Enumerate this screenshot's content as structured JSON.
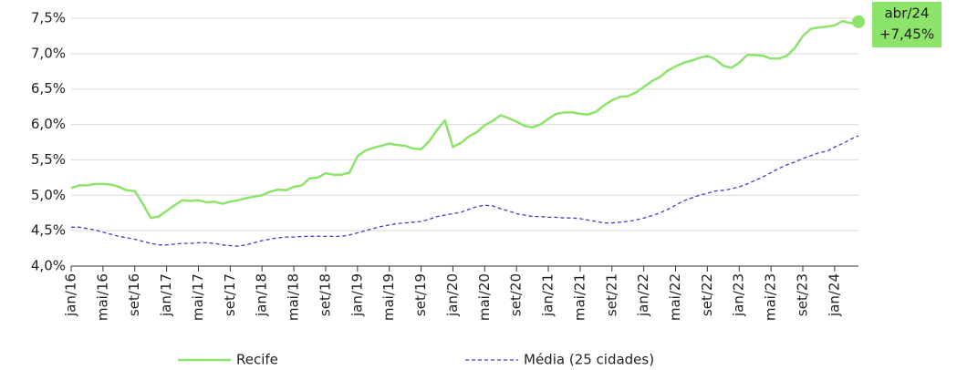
{
  "chart_data": {
    "type": "line",
    "categories": [
      "jan/16",
      null,
      null,
      null,
      "mai/16",
      null,
      null,
      null,
      "set/16",
      null,
      null,
      null,
      "jan/17",
      null,
      null,
      null,
      "mai/17",
      null,
      null,
      null,
      "set/17",
      null,
      null,
      null,
      "jan/18",
      null,
      null,
      null,
      "mai/18",
      null,
      null,
      null,
      "set/18",
      null,
      null,
      null,
      "jan/19",
      null,
      null,
      null,
      "mai/19",
      null,
      null,
      null,
      "set/19",
      null,
      null,
      null,
      "jan/20",
      null,
      null,
      null,
      "mai/20",
      null,
      null,
      null,
      "set/20",
      null,
      null,
      null,
      "jan/21",
      null,
      null,
      null,
      "mai/21",
      null,
      null,
      null,
      "set/21",
      null,
      null,
      null,
      "jan/22",
      null,
      null,
      null,
      "mai/22",
      null,
      null,
      null,
      "set/22",
      null,
      null,
      null,
      "jan/23",
      null,
      null,
      null,
      "mai/23",
      null,
      null,
      null,
      "set/23",
      null,
      null,
      null,
      "jan/24",
      null,
      null,
      null
    ],
    "series": [
      {
        "name": "Recife",
        "color": "#8de46b",
        "dashed": false,
        "values": [
          5.1,
          5.14,
          5.14,
          5.16,
          5.16,
          5.15,
          5.12,
          5.07,
          5.06,
          4.88,
          4.68,
          4.7,
          4.78,
          4.86,
          4.93,
          4.92,
          4.93,
          4.9,
          4.91,
          4.88,
          4.91,
          4.93,
          4.96,
          4.98,
          5.0,
          5.05,
          5.08,
          5.07,
          5.12,
          5.14,
          5.24,
          5.25,
          5.31,
          5.29,
          5.29,
          5.32,
          5.55,
          5.63,
          5.67,
          5.7,
          5.73,
          5.71,
          5.7,
          5.66,
          5.65,
          5.76,
          5.92,
          6.06,
          5.68,
          5.74,
          5.83,
          5.89,
          5.99,
          6.05,
          6.13,
          6.09,
          6.04,
          5.98,
          5.96,
          6.0,
          6.08,
          6.15,
          6.17,
          6.17,
          6.15,
          6.14,
          6.18,
          6.27,
          6.34,
          6.39,
          6.4,
          6.45,
          6.53,
          6.61,
          6.67,
          6.76,
          6.82,
          6.87,
          6.9,
          6.94,
          6.97,
          6.92,
          6.83,
          6.8,
          6.87,
          6.98,
          6.98,
          6.97,
          6.93,
          6.93,
          6.97,
          7.08,
          7.25,
          7.35,
          7.37,
          7.38,
          7.4,
          7.46,
          7.43,
          7.45
        ]
      },
      {
        "name": "Média (25 cidades)",
        "color": "#5a2fd0",
        "dashed": true,
        "values": [
          4.55,
          4.55,
          4.53,
          4.51,
          4.48,
          4.45,
          4.42,
          4.4,
          4.38,
          4.35,
          4.32,
          4.3,
          4.3,
          4.31,
          4.32,
          4.32,
          4.33,
          4.33,
          4.32,
          4.3,
          4.29,
          4.28,
          4.3,
          4.33,
          4.36,
          4.38,
          4.4,
          4.41,
          4.41,
          4.42,
          4.42,
          4.42,
          4.42,
          4.42,
          4.42,
          4.44,
          4.47,
          4.5,
          4.53,
          4.56,
          4.58,
          4.6,
          4.61,
          4.62,
          4.63,
          4.66,
          4.7,
          4.72,
          4.74,
          4.76,
          4.8,
          4.84,
          4.86,
          4.85,
          4.81,
          4.78,
          4.74,
          4.72,
          4.7,
          4.7,
          4.69,
          4.69,
          4.68,
          4.68,
          4.67,
          4.65,
          4.63,
          4.61,
          4.61,
          4.62,
          4.63,
          4.65,
          4.68,
          4.71,
          4.75,
          4.8,
          4.86,
          4.92,
          4.96,
          5.0,
          5.03,
          5.06,
          5.07,
          5.09,
          5.12,
          5.16,
          5.21,
          5.26,
          5.32,
          5.38,
          5.43,
          5.47,
          5.52,
          5.56,
          5.6,
          5.62,
          5.68,
          5.73,
          5.79,
          5.84
        ]
      }
    ],
    "ylim": [
      4.0,
      7.5
    ],
    "yticks": [
      {
        "value": 4.0,
        "label": "4,0%"
      },
      {
        "value": 4.5,
        "label": "4,5%"
      },
      {
        "value": 5.0,
        "label": "5,0%"
      },
      {
        "value": 5.5,
        "label": "5,5%"
      },
      {
        "value": 6.0,
        "label": "6,0%"
      },
      {
        "value": 6.5,
        "label": "6,5%"
      },
      {
        "value": 7.0,
        "label": "7,0%"
      },
      {
        "value": 7.5,
        "label": "7,5%"
      }
    ],
    "grid": true,
    "annotation": {
      "lines": [
        "abr/24",
        "+7,45%"
      ],
      "color": "#8de46b"
    }
  }
}
